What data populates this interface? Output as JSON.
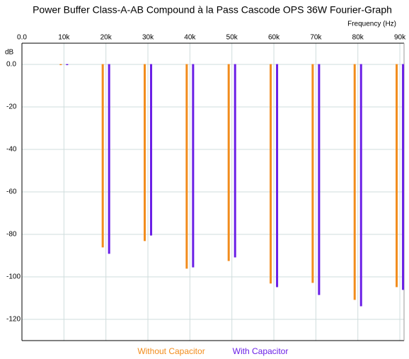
{
  "chart_data": {
    "type": "bar",
    "title": "Power Buffer Class-A-AB Compound à la Pass Cascode OPS 36W Fourier-Graph",
    "x_label": "Frequency   (Hz)",
    "y_label": "dB",
    "x": [
      10000,
      20000,
      30000,
      40000,
      50000,
      60000,
      70000,
      80000,
      90000
    ],
    "series": [
      {
        "name": "Without Capacitor",
        "color": "#f28c1c",
        "values": [
          0,
          -86.3,
          -83.3,
          -96.3,
          -92.7,
          -103.3,
          -103,
          -111,
          -105
        ]
      },
      {
        "name": "With Capacitor",
        "color": "#6a1ee6",
        "values": [
          0,
          -89.3,
          -80.7,
          -95.7,
          -91,
          -105,
          -108.7,
          -114,
          -106.3
        ]
      }
    ],
    "xlim": [
      0,
      91000
    ],
    "xticks": [
      {
        "value": 0,
        "label": "0.0"
      },
      {
        "value": 10000,
        "label": "10k"
      },
      {
        "value": 20000,
        "label": "20k"
      },
      {
        "value": 30000,
        "label": "30k"
      },
      {
        "value": 40000,
        "label": "40k"
      },
      {
        "value": 50000,
        "label": "50k"
      },
      {
        "value": 60000,
        "label": "60k"
      },
      {
        "value": 70000,
        "label": "70k"
      },
      {
        "value": 80000,
        "label": "80k"
      },
      {
        "value": 90000,
        "label": "90k"
      }
    ],
    "ylim": [
      -130,
      10
    ],
    "yticks": [
      {
        "value": 0,
        "label": "0.0"
      },
      -20,
      -40,
      -60,
      -80,
      -100,
      -120
    ],
    "grid": true
  }
}
